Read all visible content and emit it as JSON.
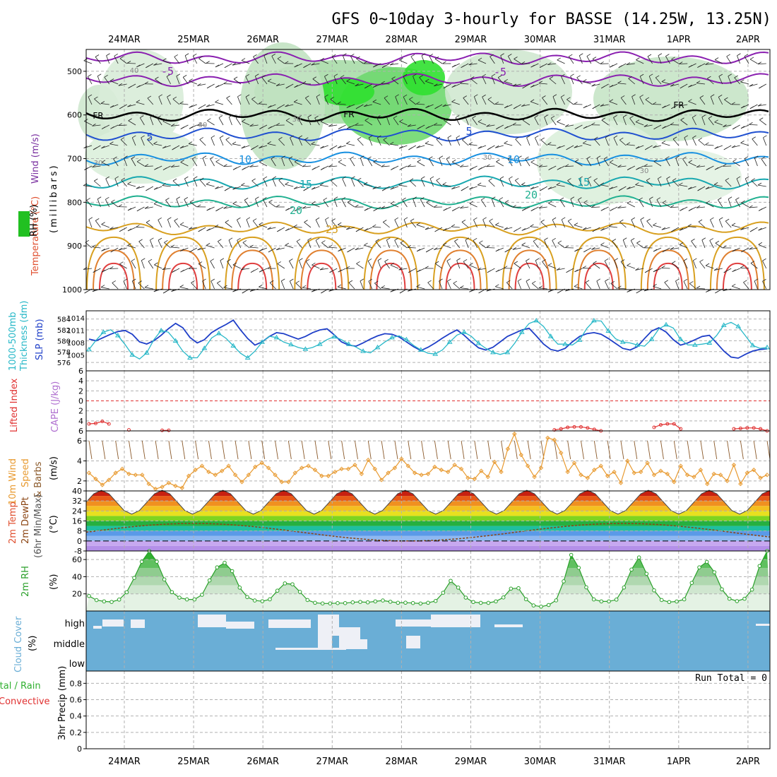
{
  "title": "GFS 0~10day 3-hourly for BASSE (14.25W, 13.25N)",
  "dates": [
    "24MAR",
    "25MAR",
    "26MAR",
    "27MAR",
    "28MAR",
    "29MAR",
    "30MAR",
    "31MAR",
    "1APR",
    "2APR"
  ],
  "colors": {
    "grid": "#b0b0b0",
    "rh": "#21c021",
    "temp": "#e05030",
    "wind": "#7a30a0",
    "thickness": "#1f3fc8",
    "slp": "#28b8c8",
    "cape": "#b070d0",
    "lifted": "#e03030",
    "wind10": "#e89a30",
    "barbs": "#8b5a2b",
    "rh2m": "#2aa02a",
    "cloud": "#6aaed6"
  },
  "labels": {
    "p1": [
      "Wind (m/s)",
      "Temperature (°C)",
      "RH (%)",
      "(millibars)"
    ],
    "p2": [
      "1000-500mb",
      "Thickness (dm)",
      "SLP (mb)"
    ],
    "p3": [
      "Lifted Index",
      "CAPE (J/kg)"
    ],
    "p4": [
      "10m Wind",
      "Speed",
      "& Barbs",
      "(m/s)"
    ],
    "p5": [
      "2m Temp",
      "2m DewPt",
      "(6hr Min/Max)",
      "(°C)"
    ],
    "p6": [
      "2m RH",
      "(%)"
    ],
    "p7": [
      "Cloud Cover",
      "(%)"
    ],
    "p8": [
      "Total / Rain",
      "Convective",
      "3hr Precip (mm)"
    ]
  },
  "contour_labels": {
    "wind_speeds": [
      "40",
      "30",
      "30",
      "30",
      "30",
      "30"
    ],
    "temps": [
      "-5",
      "-5",
      "5",
      "5",
      "10",
      "10",
      "15",
      "15",
      "20",
      "20",
      "25"
    ],
    "freezing": "FR"
  },
  "cloud_levels": [
    "high",
    "middle",
    "low"
  ],
  "run_total": "Run Total = 0",
  "chart_data": [
    {
      "type": "heatmap",
      "panel": "pressure-time cross-section (wind barbs, temperature, RH)",
      "y_axis": "millibars",
      "yticks": [
        500,
        600,
        700,
        800,
        900,
        1000
      ],
      "ylim": [
        450,
        1000
      ],
      "temperature_isotherms_c": [
        -5,
        0,
        5,
        10,
        15,
        20,
        25
      ],
      "freezing_level_mb": 600,
      "rh_percent_max": 80
    },
    {
      "type": "line",
      "panel": "thickness and sea level pressure",
      "x": "3-hourly steps from 24MAR 00Z",
      "series": [
        {
          "name": "1000-500mb Thickness (dm)",
          "values": [
            580.3,
            580,
            580.6,
            581.2,
            581.7,
            581.9,
            581.2,
            579.8,
            579.4,
            580,
            581,
            582.2,
            583.2,
            582.4,
            580.6,
            579.6,
            580.2,
            581.5,
            582.3,
            583,
            583.8,
            582,
            580.4,
            579.2,
            579.8,
            580.8,
            581.5,
            581.3,
            580.8,
            580.3,
            580.8,
            581.5,
            582,
            582.2,
            581.1,
            579.8,
            579.2,
            579,
            579.6,
            580.3,
            580.9,
            581.3,
            581.2,
            580.7,
            579.8,
            578.9,
            578.2,
            578.8,
            579.6,
            580.5,
            581.3,
            582,
            581,
            579.8,
            578.7,
            578.3,
            578.8,
            579.8,
            580.8,
            581.4,
            582,
            582.3,
            580.9,
            579.4,
            578.4,
            578.1,
            578.6,
            579.8,
            580.8,
            581.3,
            581.5,
            581.2,
            580.4,
            579.5,
            578.6,
            578.3,
            578.9,
            580.4,
            581.8,
            582.4,
            581.6,
            580.2,
            579.2,
            579.6,
            580.2,
            580.8,
            581,
            579.6,
            578.1,
            577,
            576.8,
            577.5,
            578.1,
            578.4,
            578.5
          ]
        },
        {
          "name": "SLP (mb)",
          "values": [
            1006.3,
            1008.6,
            1010.5,
            1011.1,
            1009.7,
            1007.5,
            1005,
            1004,
            1005.5,
            1008.7,
            1010.9,
            1010.5,
            1008.4,
            1005.9,
            1004.3,
            1004.3,
            1006.6,
            1009.1,
            1010.2,
            1009,
            1007.2,
            1005.4,
            1004.3,
            1005.9,
            1008.1,
            1009.5,
            1009.2,
            1008.1,
            1007.5,
            1006.8,
            1006.4,
            1006.8,
            1007.6,
            1008.7,
            1009.4,
            1008.7,
            1007.6,
            1006.9,
            1005.9,
            1005.5,
            1006.8,
            1008.1,
            1009.2,
            1009.6,
            1008.7,
            1007.3,
            1006.2,
            1005.4,
            1005.2,
            1006.2,
            1008.1,
            1009.8,
            1010.5,
            1009.5,
            1007.8,
            1006.6,
            1005.6,
            1005.1,
            1005.6,
            1007.8,
            1010.5,
            1012.6,
            1013.3,
            1011.9,
            1009.5,
            1007.6,
            1007.6,
            1007.4,
            1008.6,
            1011.4,
            1013.3,
            1013.2,
            1010.8,
            1008.9,
            1008.1,
            1007.9,
            1007.4,
            1007.1,
            1008.8,
            1011.3,
            1012.3,
            1011.5,
            1008.8,
            1007.4,
            1007.4,
            1007.6,
            1007.9,
            1009.7,
            1012.2,
            1012.9,
            1011.9,
            1009.6,
            1007.3,
            1006.6,
            1006.8
          ]
        }
      ],
      "y1ticks": [
        576,
        578,
        580,
        582,
        584
      ],
      "y2ticks": [
        1005,
        1008,
        1011,
        1014
      ]
    },
    {
      "type": "line",
      "panel": "Lifted Index / CAPE",
      "yticks": [
        6,
        4,
        2,
        0,
        -2,
        -4,
        -6
      ],
      "ylim": [
        6,
        -6
      ],
      "lifted_index_segments": [
        {
          "from_index": 0,
          "to_index": 3,
          "values": [
            4.6,
            4.5,
            4.1,
            4.6
          ]
        },
        {
          "from_index": 6,
          "to_index": 6,
          "values": [
            5.8
          ]
        },
        {
          "from_index": 11,
          "to_index": 12,
          "values": [
            5.9,
            5.9
          ]
        },
        {
          "from_index": 70,
          "to_index": 77,
          "values": [
            5.8,
            5.6,
            5.3,
            5.2,
            5.2,
            5.4,
            5.7,
            6
          ]
        },
        {
          "from_index": 85,
          "to_index": 89,
          "values": [
            5.3,
            4.8,
            4.6,
            4.6,
            5.6
          ]
        },
        {
          "from_index": 97,
          "to_index": 102,
          "values": [
            5.6,
            5.5,
            5.4,
            5.4,
            5.6,
            6
          ]
        }
      ]
    },
    {
      "type": "line",
      "panel": "10m wind speed",
      "yticks": [
        2,
        4,
        6
      ],
      "ylim": [
        1,
        7
      ],
      "values": [
        2.8,
        2.2,
        1.6,
        2.1,
        2.8,
        3.2,
        2.7,
        2.6,
        2.6,
        1.7,
        1.2,
        1.4,
        1.8,
        1.5,
        1.3,
        2.5,
        3.1,
        3.5,
        2.9,
        2.6,
        3,
        3.5,
        2.6,
        1.9,
        2.6,
        3.4,
        3.8,
        3.3,
        2.6,
        1.9,
        1.9,
        2.8,
        3.3,
        3.5,
        3.1,
        2.5,
        2.5,
        2.9,
        3.2,
        3.2,
        3.6,
        2.7,
        4.1,
        3.2,
        2.1,
        2.8,
        3.3,
        4.2,
        3.5,
        2.8,
        2.6,
        2.7,
        3.4,
        3.1,
        2.9,
        3.6,
        3.2,
        2.3,
        2.2,
        3,
        2.4,
        3.9,
        2.9,
        5.2,
        6.7,
        4.6,
        3.5,
        2.4,
        3.3,
        6.3,
        6.1,
        4.8,
        2.9,
        3.8,
        2.6,
        2.3,
        3.1,
        3.5,
        2.5,
        2.9,
        1.8,
        4,
        2.8,
        2.9,
        3.8,
        2.6,
        3,
        2.7,
        1.9,
        3.5,
        2.6,
        2.4,
        3.1,
        1.7,
        2.7,
        2.6,
        2,
        3.6,
        1.7,
        2.8,
        3.1,
        2.3,
        2.6
      ]
    },
    {
      "type": "area",
      "panel": "2m temperature and dewpoint",
      "yticks": [
        -8,
        0,
        8,
        16,
        24,
        32,
        40
      ],
      "ylim": [
        -8,
        40
      ],
      "temp_min_c": 21,
      "temp_max_c": 41,
      "dewpoint_range_c": [
        -1,
        16
      ]
    },
    {
      "type": "area",
      "panel": "2m RH",
      "yticks": [
        20,
        40,
        60
      ],
      "ylim": [
        0,
        70
      ],
      "values": [
        17.5,
        12.7,
        11.2,
        10.6,
        13.3,
        21.9,
        38.6,
        57.5,
        69.9,
        57.5,
        36.8,
        22,
        15.6,
        13.5,
        13.5,
        18.9,
        35.7,
        50.9,
        56.2,
        46.5,
        27.3,
        16.2,
        12.3,
        11.4,
        13.6,
        23.7,
        32.2,
        31.2,
        22.3,
        12.8,
        9.6,
        8.8,
        8.8,
        9.2,
        9.2,
        10.1,
        10.6,
        10.1,
        11.2,
        12.3,
        10.8,
        9.6,
        9.7,
        9.3,
        8.7,
        9.6,
        11.7,
        21.3,
        35.2,
        27.3,
        15.6,
        10.5,
        9.5,
        9.5,
        11.2,
        15.8,
        26.1,
        26.6,
        13.7,
        6.5,
        5.1,
        7,
        12.4,
        34.6,
        65.4,
        50.4,
        27.6,
        13.5,
        11.2,
        11.2,
        13.3,
        27.4,
        48.3,
        62.4,
        43.4,
        24.1,
        12.8,
        10.5,
        11.1,
        13.6,
        32.8,
        50.9,
        57.3,
        45.2,
        25.3,
        14.3,
        11.5,
        14.3,
        25,
        52.5,
        69.9
      ]
    },
    {
      "type": "table",
      "panel": "cloud cover",
      "levels": [
        "high",
        "middle",
        "low"
      ]
    },
    {
      "type": "bar",
      "panel": "3hr precipitation",
      "yticks": [
        0,
        0.2,
        0.4,
        0.6,
        0.8
      ],
      "ylim": [
        0,
        0.95
      ],
      "values": [
        0
      ]
    }
  ]
}
